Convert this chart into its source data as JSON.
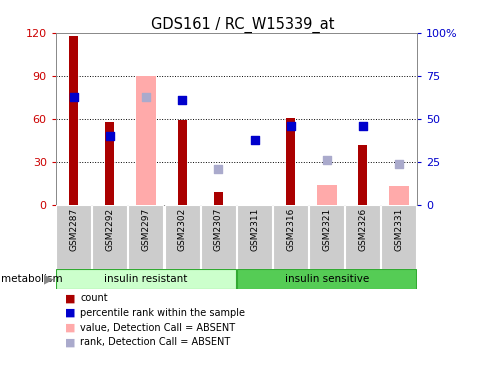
{
  "title": "GDS161 / RC_W15339_at",
  "samples": [
    "GSM2287",
    "GSM2292",
    "GSM2297",
    "GSM2302",
    "GSM2307",
    "GSM2311",
    "GSM2316",
    "GSM2321",
    "GSM2326",
    "GSM2331"
  ],
  "count_values": [
    118,
    58,
    0,
    59,
    9,
    0,
    61,
    0,
    42,
    0
  ],
  "rank_values": [
    63,
    40,
    0,
    61,
    0,
    38,
    46,
    0,
    46,
    0
  ],
  "absent_value_values": [
    0,
    0,
    90,
    0,
    0,
    0,
    0,
    14,
    0,
    13
  ],
  "absent_rank_values": [
    0,
    0,
    63,
    0,
    21,
    0,
    0,
    26,
    0,
    24
  ],
  "count_color": "#aa0000",
  "rank_color": "#0000cc",
  "absent_value_color": "#ffaaaa",
  "absent_rank_color": "#aaaacc",
  "ylim_left": [
    0,
    120
  ],
  "ylim_right": [
    0,
    100
  ],
  "yticks_left": [
    0,
    30,
    60,
    90,
    120
  ],
  "yticks_right": [
    0,
    25,
    50,
    75,
    100
  ],
  "yticklabels_right": [
    "0",
    "25",
    "50",
    "75",
    "100%"
  ],
  "group1_label": "insulin resistant",
  "group2_label": "insulin sensitive",
  "group1_indices": [
    0,
    1,
    2,
    3,
    4
  ],
  "group2_indices": [
    5,
    6,
    7,
    8,
    9
  ],
  "group1_color": "#ccffcc",
  "group2_color": "#55cc55",
  "xlabel_left_color": "#cc0000",
  "xlabel_right_color": "#0000cc",
  "background_color": "#ffffff",
  "ticklabel_bg": "#cccccc",
  "metabolism_label": "metabolism",
  "legend_items": [
    {
      "label": "count",
      "color": "#aa0000"
    },
    {
      "label": "percentile rank within the sample",
      "color": "#0000cc"
    },
    {
      "label": "value, Detection Call = ABSENT",
      "color": "#ffaaaa"
    },
    {
      "label": "rank, Detection Call = ABSENT",
      "color": "#aaaacc"
    }
  ]
}
